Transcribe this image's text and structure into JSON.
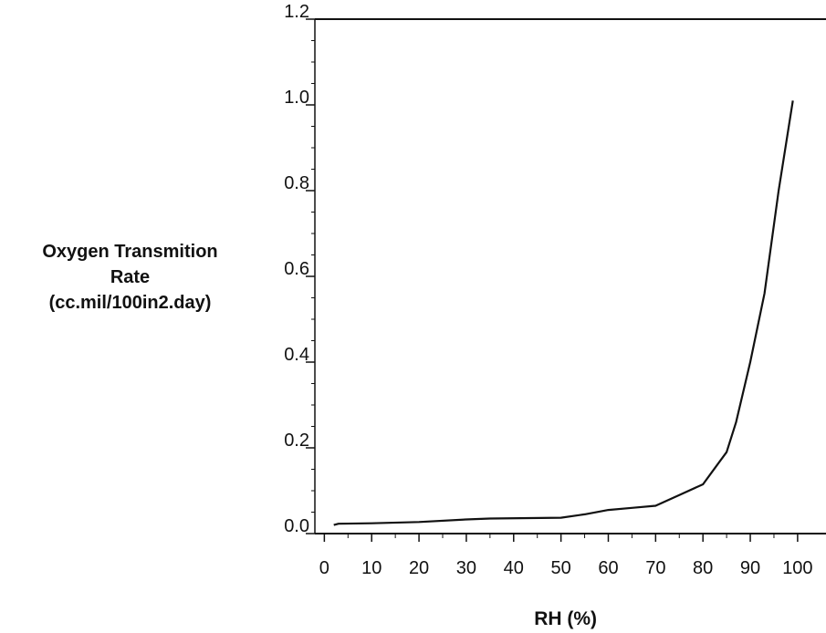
{
  "chart_data": {
    "type": "line",
    "title": "",
    "xlabel": "RH (%)",
    "ylabel_lines": [
      "Oxygen Transmition",
      "Rate",
      "(cc.mil/100in2.day)"
    ],
    "xlim": [
      -2,
      106
    ],
    "ylim": [
      0,
      1.2
    ],
    "x_ticks": [
      0,
      10,
      20,
      30,
      40,
      50,
      60,
      70,
      80,
      90,
      100
    ],
    "x_tick_labels": [
      "0",
      "10",
      "20",
      "30",
      "40",
      "50",
      "60",
      "70",
      "80",
      "90",
      "100"
    ],
    "y_ticks": [
      0.0,
      0.2,
      0.4,
      0.6,
      0.8,
      1.0,
      1.2
    ],
    "y_tick_labels": [
      "0.0",
      "0.2",
      "0.4",
      "0.6",
      "0.8",
      "1.0",
      "1.2"
    ],
    "grid": false,
    "series": [
      {
        "x": [
          2,
          3,
          10,
          20,
          30,
          35,
          50,
          55,
          60,
          65,
          70,
          75,
          80,
          83,
          85,
          87,
          90,
          93,
          96,
          99
        ],
        "y": [
          0.02,
          0.023,
          0.024,
          0.027,
          0.033,
          0.035,
          0.037,
          0.045,
          0.055,
          0.06,
          0.065,
          0.09,
          0.115,
          0.16,
          0.19,
          0.26,
          0.4,
          0.56,
          0.8,
          1.01
        ]
      }
    ]
  }
}
